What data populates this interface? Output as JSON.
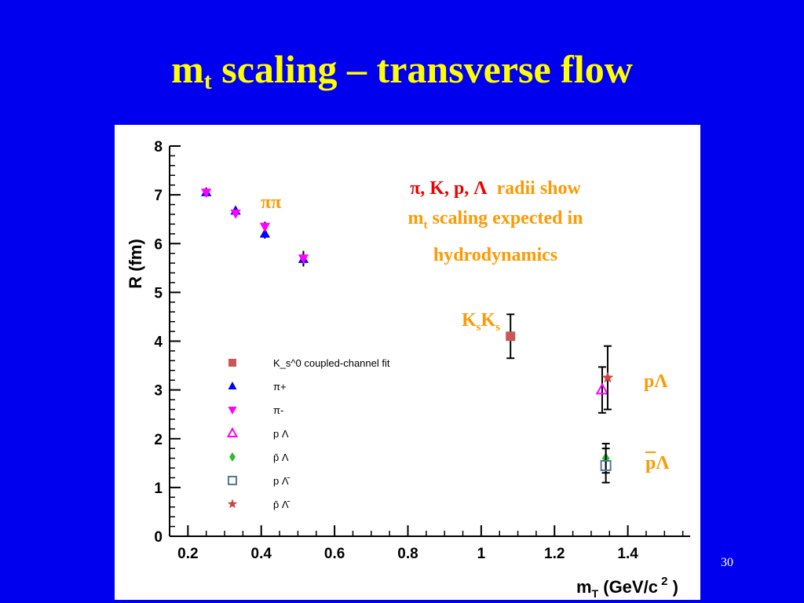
{
  "slide": {
    "title_main": "m",
    "title_sub": "t",
    "title_rest": " scaling – transverse flow",
    "slide_number": "30"
  },
  "annotations": {
    "note_line1_red": "π, K, p, Λ",
    "note_line1_rest": "radii show",
    "note_line2_a": "m",
    "note_line2_sub": "t",
    "note_line2_b": " scaling expected in",
    "note_line3": "hydrodynamics",
    "pipi": "ππ",
    "kk_a": "K",
    "kk_sub1": "s",
    "kk_b": "K",
    "kk_sub2": "s",
    "plambda_p": "p",
    "plambda_l": "Λ",
    "pbarlambda_p": "p",
    "pbarlambda_l": "Λ"
  },
  "chart_data": {
    "type": "scatter",
    "xlabel": "m_T (GeV/c^2)",
    "ylabel": "R (fm)",
    "xlim": [
      0.15,
      1.57
    ],
    "ylim": [
      0,
      8
    ],
    "xticks": [
      0.2,
      0.4,
      0.6,
      0.8,
      1,
      1.2,
      1.4
    ],
    "xtick_labels": [
      "0.2",
      "0.4",
      "0.6",
      "0.8",
      "1",
      "1.2",
      "1.4"
    ],
    "yticks": [
      0,
      1,
      2,
      3,
      4,
      5,
      6,
      7,
      8
    ],
    "ytick_labels": [
      "0",
      "1",
      "2",
      "3",
      "4",
      "5",
      "6",
      "7",
      "8"
    ],
    "legend_position": "left-center",
    "series": [
      {
        "name": "K_s^0 coupled-channel fit",
        "marker": "square",
        "color": "#cc5555",
        "points": [
          {
            "x": 1.08,
            "y": 4.1,
            "err": 0.45
          }
        ]
      },
      {
        "name": "π+",
        "marker": "triangle-up",
        "color": "#0000ff",
        "points": [
          {
            "x": 0.25,
            "y": 7.05,
            "err": 0.08
          },
          {
            "x": 0.33,
            "y": 6.67,
            "err": 0.08
          },
          {
            "x": 0.41,
            "y": 6.2,
            "err": 0.1
          },
          {
            "x": 0.515,
            "y": 5.68,
            "err": 0.15
          }
        ]
      },
      {
        "name": "π-",
        "marker": "triangle-down",
        "color": "#ff00ff",
        "points": [
          {
            "x": 0.25,
            "y": 7.05,
            "err": 0.08
          },
          {
            "x": 0.33,
            "y": 6.62,
            "err": 0.08
          },
          {
            "x": 0.41,
            "y": 6.35,
            "err": 0.1
          },
          {
            "x": 0.515,
            "y": 5.7,
            "err": 0.15
          }
        ]
      },
      {
        "name": "p Λ",
        "marker": "triangle-open",
        "color": "#ff00ff",
        "points": [
          {
            "x": 1.33,
            "y": 3.0,
            "err": 0.47
          }
        ]
      },
      {
        "name": "p̄ Λ",
        "marker": "diamond",
        "color": "#33bb33",
        "points": [
          {
            "x": 1.34,
            "y": 1.6,
            "err": 0.3
          }
        ]
      },
      {
        "name": "p Λ̄",
        "marker": "square-open",
        "color": "#557799",
        "points": [
          {
            "x": 1.34,
            "y": 1.45,
            "err": 0.35
          }
        ]
      },
      {
        "name": "p̄ Λ̄",
        "marker": "star",
        "color": "#cc4444",
        "points": [
          {
            "x": 1.345,
            "y": 3.25,
            "err": 0.65
          }
        ]
      }
    ]
  }
}
